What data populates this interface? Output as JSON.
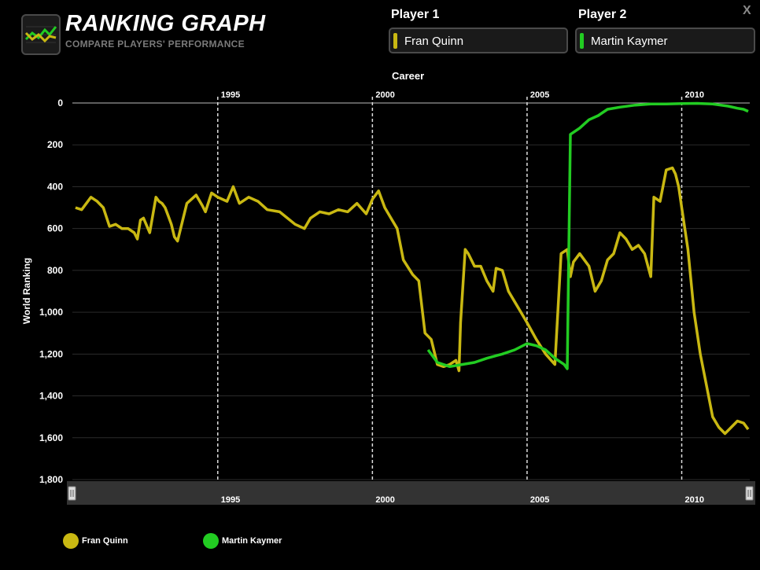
{
  "header": {
    "title": "RANKING GRAPH",
    "subtitle": "COMPARE PLAYERS' PERFORMANCE",
    "close_label": "X",
    "logo_icon": "line-chart-icon"
  },
  "players": [
    {
      "label": "Player 1",
      "name": "Fran Quinn",
      "color": "#c9b812"
    },
    {
      "label": "Player 2",
      "name": "Martin Kaymer",
      "color": "#22cc22"
    }
  ],
  "range_label": "Career",
  "chart_data": {
    "type": "line",
    "title": "",
    "xlabel": "",
    "ylabel": "World Ranking",
    "xlim": [
      1990.3,
      2012.2
    ],
    "ylim": [
      0,
      1800
    ],
    "y_inverted": true,
    "yticks": [
      0,
      200,
      400,
      600,
      800,
      1000,
      1200,
      1400,
      1600,
      1800
    ],
    "ytick_labels": [
      "0",
      "200",
      "400",
      "600",
      "800",
      "1,000",
      "1,200",
      "1,400",
      "1,600",
      "1,800"
    ],
    "xticks": [
      1995,
      2000,
      2005,
      2010
    ],
    "xtick_labels": [
      "1995",
      "2000",
      "2005",
      "2010"
    ],
    "grid": true,
    "legend_position": "bottom",
    "series": [
      {
        "name": "Fran Quinn",
        "color": "#c9b812",
        "x": [
          1990.4,
          1990.6,
          1990.9,
          1991.0,
          1991.1,
          1991.3,
          1991.5,
          1991.7,
          1991.9,
          1992.1,
          1992.3,
          1992.4,
          1992.5,
          1992.6,
          1992.8,
          1993.0,
          1993.1,
          1993.2,
          1993.3,
          1993.4,
          1993.5,
          1993.6,
          1993.7,
          1994.0,
          1994.3,
          1994.5,
          1994.6,
          1994.8,
          1995.0,
          1995.3,
          1995.5,
          1995.7,
          1996.0,
          1996.3,
          1996.6,
          1997.0,
          1997.5,
          1997.8,
          1998.0,
          1998.3,
          1998.6,
          1998.9,
          1999.2,
          1999.5,
          1999.8,
          2000.0,
          2000.2,
          2000.4,
          2000.6,
          2000.8,
          2001.0,
          2001.3,
          2001.5,
          2001.7,
          2001.9,
          2002.1,
          2002.3,
          2002.5,
          2002.7,
          2002.8,
          2002.85,
          2003.0,
          2003.1,
          2003.3,
          2003.5,
          2003.7,
          2003.9,
          2004.0,
          2004.2,
          2004.4,
          2004.6,
          2004.8,
          2005.0,
          2005.3,
          2005.6,
          2005.9,
          2006.1,
          2006.3,
          2006.4,
          2006.5,
          2006.7,
          2007.0,
          2007.2,
          2007.4,
          2007.6,
          2007.8,
          2008.0,
          2008.2,
          2008.4,
          2008.6,
          2008.8,
          2009.0,
          2009.1,
          2009.3,
          2009.5,
          2009.7,
          2009.8,
          2009.9,
          2010.0,
          2010.2,
          2010.4,
          2010.6,
          2010.8,
          2011.0,
          2011.2,
          2011.4,
          2011.6,
          2011.8,
          2012.0,
          2012.15
        ],
        "y": [
          500,
          510,
          450,
          460,
          470,
          500,
          590,
          580,
          600,
          600,
          620,
          650,
          560,
          550,
          620,
          450,
          470,
          480,
          500,
          540,
          580,
          640,
          660,
          480,
          440,
          490,
          520,
          430,
          450,
          470,
          400,
          480,
          450,
          470,
          510,
          520,
          580,
          600,
          550,
          520,
          530,
          510,
          520,
          480,
          530,
          460,
          420,
          500,
          550,
          600,
          750,
          820,
          850,
          1100,
          1130,
          1250,
          1260,
          1250,
          1230,
          1280,
          1050,
          700,
          720,
          780,
          780,
          850,
          900,
          790,
          800,
          900,
          950,
          1000,
          1050,
          1130,
          1200,
          1250,
          720,
          700,
          830,
          760,
          720,
          780,
          900,
          850,
          750,
          720,
          620,
          650,
          700,
          680,
          720,
          830,
          450,
          470,
          320,
          310,
          340,
          400,
          500,
          700,
          1000,
          1200,
          1350,
          1500,
          1550,
          1580,
          1550,
          1520,
          1530,
          1560
        ]
      },
      {
        "name": "Martin Kaymer",
        "color": "#22cc22",
        "x": [
          2001.8,
          2002.1,
          2002.5,
          2002.9,
          2003.3,
          2003.7,
          2004.2,
          2004.6,
          2005.0,
          2005.3,
          2005.6,
          2005.9,
          2006.2,
          2006.3,
          2006.35,
          2006.4,
          2006.5,
          2006.7,
          2007.0,
          2007.3,
          2007.6,
          2008.0,
          2008.5,
          2009.0,
          2009.5,
          2010.0,
          2010.5,
          2011.0,
          2011.5,
          2011.8,
          2012.0,
          2012.15
        ],
        "y": [
          1180,
          1240,
          1260,
          1250,
          1240,
          1220,
          1200,
          1180,
          1150,
          1160,
          1180,
          1220,
          1250,
          1270,
          700,
          150,
          140,
          120,
          80,
          60,
          30,
          20,
          10,
          5,
          5,
          3,
          2,
          5,
          15,
          25,
          30,
          40
        ]
      }
    ]
  },
  "navigator": {
    "labels": [
      "1995",
      "2000",
      "2005",
      "2010"
    ]
  }
}
